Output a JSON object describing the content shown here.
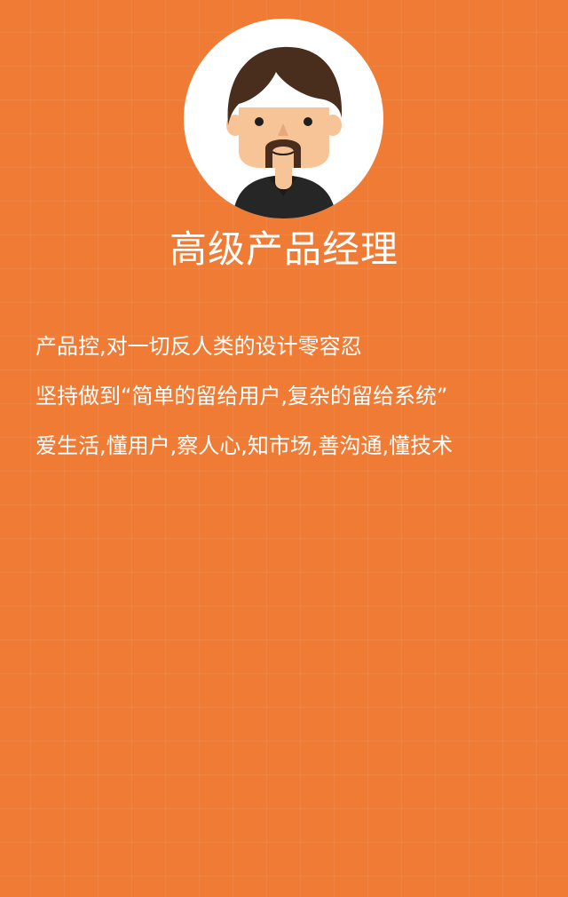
{
  "profile": {
    "avatar_icon": "cartoon-man-avatar-icon",
    "title": "高级产品经理",
    "description": [
      "产品控,对一切反人类的设计零容忍",
      "坚持做到“简单的留给用户,复杂的留给系统”",
      "爱生活,懂用户,察人心,知市场,善沟通,懂技术"
    ]
  },
  "colors": {
    "background": "#EF7B34",
    "text": "#FFFFFF",
    "avatar_circle": "#FFFFFF",
    "hair": "#4A2E1D",
    "skin": "#F6C497",
    "shirt": "#262626"
  }
}
